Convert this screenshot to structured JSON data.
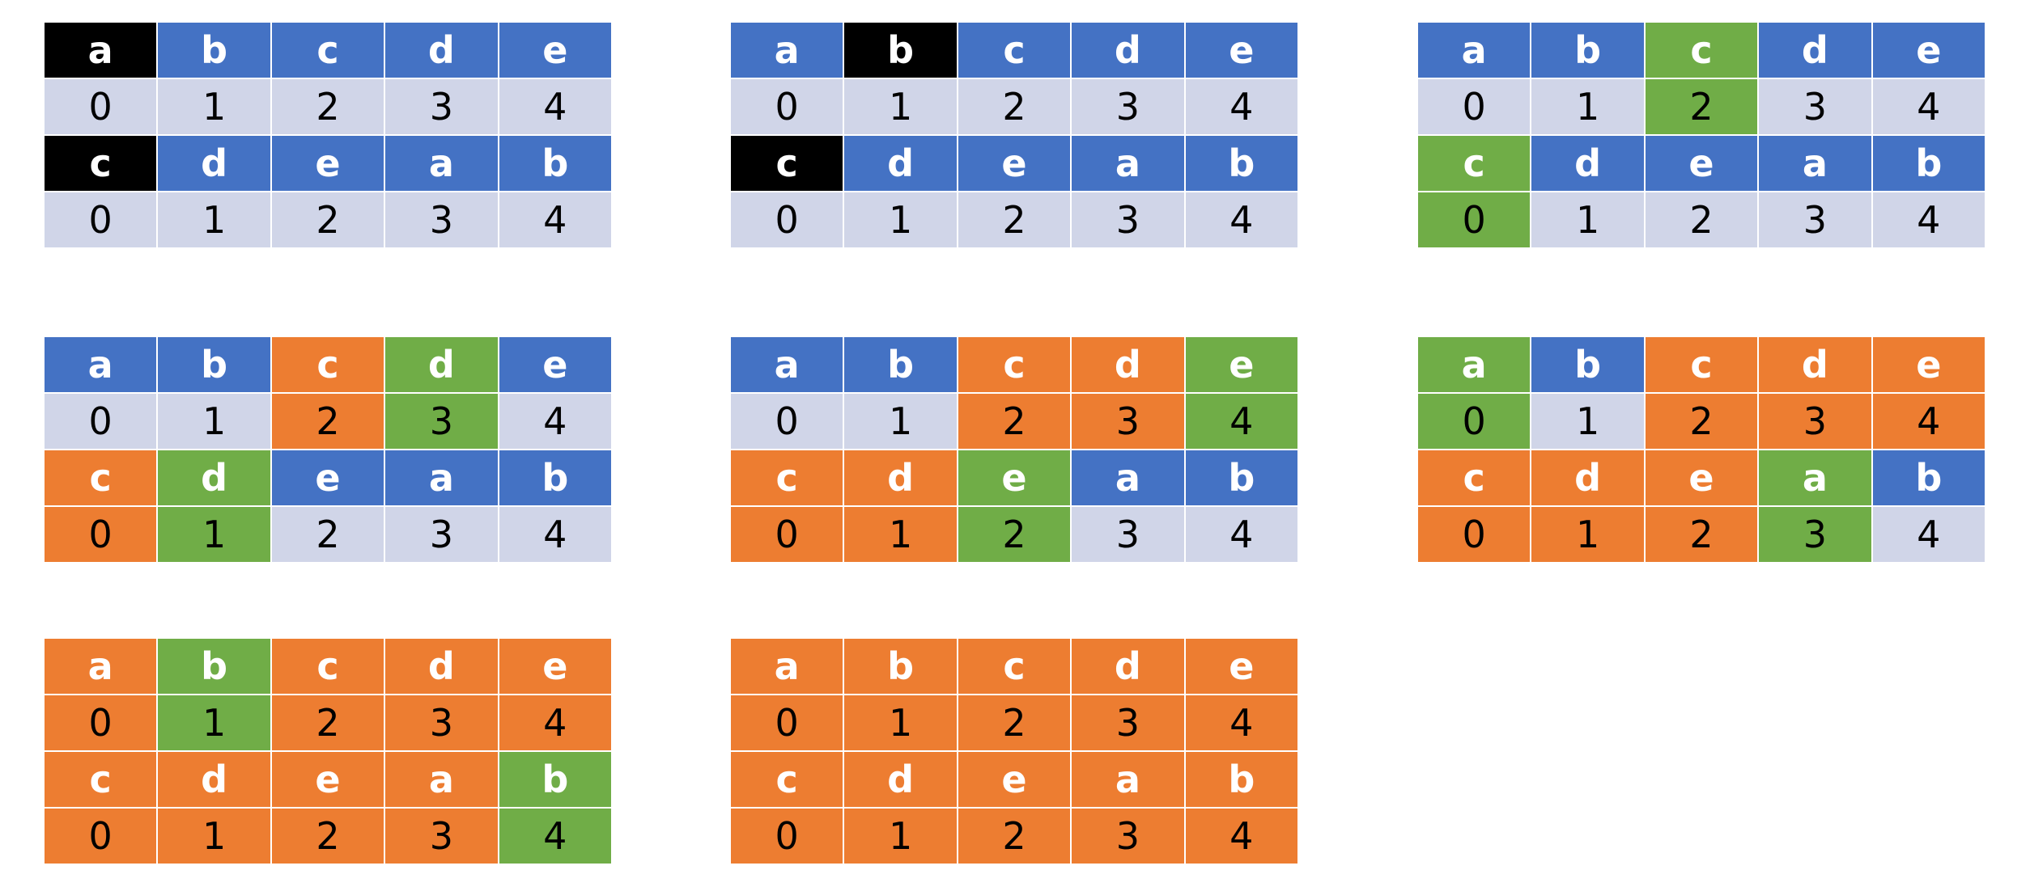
{
  "colors": {
    "blue": "#4472C4",
    "light": "#D0D5E8",
    "black": "#000000",
    "green": "#70AD47",
    "orange": "#ED7D31"
  },
  "panels": [
    {
      "rows": [
        {
          "kind": "letter",
          "cells": [
            {
              "text": "a",
              "color": "black"
            },
            {
              "text": "b",
              "color": "blue"
            },
            {
              "text": "c",
              "color": "blue"
            },
            {
              "text": "d",
              "color": "blue"
            },
            {
              "text": "e",
              "color": "blue"
            }
          ]
        },
        {
          "kind": "index",
          "cells": [
            {
              "text": "0",
              "color": "light"
            },
            {
              "text": "1",
              "color": "light"
            },
            {
              "text": "2",
              "color": "light"
            },
            {
              "text": "3",
              "color": "light"
            },
            {
              "text": "4",
              "color": "light"
            }
          ]
        },
        {
          "kind": "letter",
          "cells": [
            {
              "text": "c",
              "color": "black"
            },
            {
              "text": "d",
              "color": "blue"
            },
            {
              "text": "e",
              "color": "blue"
            },
            {
              "text": "a",
              "color": "blue"
            },
            {
              "text": "b",
              "color": "blue"
            }
          ]
        },
        {
          "kind": "index",
          "cells": [
            {
              "text": "0",
              "color": "light"
            },
            {
              "text": "1",
              "color": "light"
            },
            {
              "text": "2",
              "color": "light"
            },
            {
              "text": "3",
              "color": "light"
            },
            {
              "text": "4",
              "color": "light"
            }
          ]
        }
      ]
    },
    {
      "rows": [
        {
          "kind": "letter",
          "cells": [
            {
              "text": "a",
              "color": "blue"
            },
            {
              "text": "b",
              "color": "black"
            },
            {
              "text": "c",
              "color": "blue"
            },
            {
              "text": "d",
              "color": "blue"
            },
            {
              "text": "e",
              "color": "blue"
            }
          ]
        },
        {
          "kind": "index",
          "cells": [
            {
              "text": "0",
              "color": "light"
            },
            {
              "text": "1",
              "color": "light"
            },
            {
              "text": "2",
              "color": "light"
            },
            {
              "text": "3",
              "color": "light"
            },
            {
              "text": "4",
              "color": "light"
            }
          ]
        },
        {
          "kind": "letter",
          "cells": [
            {
              "text": "c",
              "color": "black"
            },
            {
              "text": "d",
              "color": "blue"
            },
            {
              "text": "e",
              "color": "blue"
            },
            {
              "text": "a",
              "color": "blue"
            },
            {
              "text": "b",
              "color": "blue"
            }
          ]
        },
        {
          "kind": "index",
          "cells": [
            {
              "text": "0",
              "color": "light"
            },
            {
              "text": "1",
              "color": "light"
            },
            {
              "text": "2",
              "color": "light"
            },
            {
              "text": "3",
              "color": "light"
            },
            {
              "text": "4",
              "color": "light"
            }
          ]
        }
      ]
    },
    {
      "rows": [
        {
          "kind": "letter",
          "cells": [
            {
              "text": "a",
              "color": "blue"
            },
            {
              "text": "b",
              "color": "blue"
            },
            {
              "text": "c",
              "color": "green"
            },
            {
              "text": "d",
              "color": "blue"
            },
            {
              "text": "e",
              "color": "blue"
            }
          ]
        },
        {
          "kind": "index",
          "cells": [
            {
              "text": "0",
              "color": "light"
            },
            {
              "text": "1",
              "color": "light"
            },
            {
              "text": "2",
              "color": "green"
            },
            {
              "text": "3",
              "color": "light"
            },
            {
              "text": "4",
              "color": "light"
            }
          ]
        },
        {
          "kind": "letter",
          "cells": [
            {
              "text": "c",
              "color": "green"
            },
            {
              "text": "d",
              "color": "blue"
            },
            {
              "text": "e",
              "color": "blue"
            },
            {
              "text": "a",
              "color": "blue"
            },
            {
              "text": "b",
              "color": "blue"
            }
          ]
        },
        {
          "kind": "index",
          "cells": [
            {
              "text": "0",
              "color": "green"
            },
            {
              "text": "1",
              "color": "light"
            },
            {
              "text": "2",
              "color": "light"
            },
            {
              "text": "3",
              "color": "light"
            },
            {
              "text": "4",
              "color": "light"
            }
          ]
        }
      ]
    },
    {
      "rows": [
        {
          "kind": "letter",
          "cells": [
            {
              "text": "a",
              "color": "blue"
            },
            {
              "text": "b",
              "color": "blue"
            },
            {
              "text": "c",
              "color": "orange"
            },
            {
              "text": "d",
              "color": "green"
            },
            {
              "text": "e",
              "color": "blue"
            }
          ]
        },
        {
          "kind": "index",
          "cells": [
            {
              "text": "0",
              "color": "light"
            },
            {
              "text": "1",
              "color": "light"
            },
            {
              "text": "2",
              "color": "orange"
            },
            {
              "text": "3",
              "color": "green"
            },
            {
              "text": "4",
              "color": "light"
            }
          ]
        },
        {
          "kind": "letter",
          "cells": [
            {
              "text": "c",
              "color": "orange"
            },
            {
              "text": "d",
              "color": "green"
            },
            {
              "text": "e",
              "color": "blue"
            },
            {
              "text": "a",
              "color": "blue"
            },
            {
              "text": "b",
              "color": "blue"
            }
          ]
        },
        {
          "kind": "index",
          "cells": [
            {
              "text": "0",
              "color": "orange"
            },
            {
              "text": "1",
              "color": "green"
            },
            {
              "text": "2",
              "color": "light"
            },
            {
              "text": "3",
              "color": "light"
            },
            {
              "text": "4",
              "color": "light"
            }
          ]
        }
      ]
    },
    {
      "rows": [
        {
          "kind": "letter",
          "cells": [
            {
              "text": "a",
              "color": "blue"
            },
            {
              "text": "b",
              "color": "blue"
            },
            {
              "text": "c",
              "color": "orange"
            },
            {
              "text": "d",
              "color": "orange"
            },
            {
              "text": "e",
              "color": "green"
            }
          ]
        },
        {
          "kind": "index",
          "cells": [
            {
              "text": "0",
              "color": "light"
            },
            {
              "text": "1",
              "color": "light"
            },
            {
              "text": "2",
              "color": "orange"
            },
            {
              "text": "3",
              "color": "orange"
            },
            {
              "text": "4",
              "color": "green"
            }
          ]
        },
        {
          "kind": "letter",
          "cells": [
            {
              "text": "c",
              "color": "orange"
            },
            {
              "text": "d",
              "color": "orange"
            },
            {
              "text": "e",
              "color": "green"
            },
            {
              "text": "a",
              "color": "blue"
            },
            {
              "text": "b",
              "color": "blue"
            }
          ]
        },
        {
          "kind": "index",
          "cells": [
            {
              "text": "0",
              "color": "orange"
            },
            {
              "text": "1",
              "color": "orange"
            },
            {
              "text": "2",
              "color": "green"
            },
            {
              "text": "3",
              "color": "light"
            },
            {
              "text": "4",
              "color": "light"
            }
          ]
        }
      ]
    },
    {
      "rows": [
        {
          "kind": "letter",
          "cells": [
            {
              "text": "a",
              "color": "green"
            },
            {
              "text": "b",
              "color": "blue"
            },
            {
              "text": "c",
              "color": "orange"
            },
            {
              "text": "d",
              "color": "orange"
            },
            {
              "text": "e",
              "color": "orange"
            }
          ]
        },
        {
          "kind": "index",
          "cells": [
            {
              "text": "0",
              "color": "green"
            },
            {
              "text": "1",
              "color": "light"
            },
            {
              "text": "2",
              "color": "orange"
            },
            {
              "text": "3",
              "color": "orange"
            },
            {
              "text": "4",
              "color": "orange"
            }
          ]
        },
        {
          "kind": "letter",
          "cells": [
            {
              "text": "c",
              "color": "orange"
            },
            {
              "text": "d",
              "color": "orange"
            },
            {
              "text": "e",
              "color": "orange"
            },
            {
              "text": "a",
              "color": "green"
            },
            {
              "text": "b",
              "color": "blue"
            }
          ]
        },
        {
          "kind": "index",
          "cells": [
            {
              "text": "0",
              "color": "orange"
            },
            {
              "text": "1",
              "color": "orange"
            },
            {
              "text": "2",
              "color": "orange"
            },
            {
              "text": "3",
              "color": "green"
            },
            {
              "text": "4",
              "color": "light"
            }
          ]
        }
      ]
    },
    {
      "rows": [
        {
          "kind": "letter",
          "cells": [
            {
              "text": "a",
              "color": "orange"
            },
            {
              "text": "b",
              "color": "green"
            },
            {
              "text": "c",
              "color": "orange"
            },
            {
              "text": "d",
              "color": "orange"
            },
            {
              "text": "e",
              "color": "orange"
            }
          ]
        },
        {
          "kind": "index",
          "cells": [
            {
              "text": "0",
              "color": "orange"
            },
            {
              "text": "1",
              "color": "green"
            },
            {
              "text": "2",
              "color": "orange"
            },
            {
              "text": "3",
              "color": "orange"
            },
            {
              "text": "4",
              "color": "orange"
            }
          ]
        },
        {
          "kind": "letter",
          "cells": [
            {
              "text": "c",
              "color": "orange"
            },
            {
              "text": "d",
              "color": "orange"
            },
            {
              "text": "e",
              "color": "orange"
            },
            {
              "text": "a",
              "color": "orange"
            },
            {
              "text": "b",
              "color": "green"
            }
          ]
        },
        {
          "kind": "index",
          "cells": [
            {
              "text": "0",
              "color": "orange"
            },
            {
              "text": "1",
              "color": "orange"
            },
            {
              "text": "2",
              "color": "orange"
            },
            {
              "text": "3",
              "color": "orange"
            },
            {
              "text": "4",
              "color": "green"
            }
          ]
        }
      ]
    },
    {
      "rows": [
        {
          "kind": "letter",
          "cells": [
            {
              "text": "a",
              "color": "orange"
            },
            {
              "text": "b",
              "color": "orange"
            },
            {
              "text": "c",
              "color": "orange"
            },
            {
              "text": "d",
              "color": "orange"
            },
            {
              "text": "e",
              "color": "orange"
            }
          ]
        },
        {
          "kind": "index",
          "cells": [
            {
              "text": "0",
              "color": "orange"
            },
            {
              "text": "1",
              "color": "orange"
            },
            {
              "text": "2",
              "color": "orange"
            },
            {
              "text": "3",
              "color": "orange"
            },
            {
              "text": "4",
              "color": "orange"
            }
          ]
        },
        {
          "kind": "letter",
          "cells": [
            {
              "text": "c",
              "color": "orange"
            },
            {
              "text": "d",
              "color": "orange"
            },
            {
              "text": "e",
              "color": "orange"
            },
            {
              "text": "a",
              "color": "orange"
            },
            {
              "text": "b",
              "color": "orange"
            }
          ]
        },
        {
          "kind": "index",
          "cells": [
            {
              "text": "0",
              "color": "orange"
            },
            {
              "text": "1",
              "color": "orange"
            },
            {
              "text": "2",
              "color": "orange"
            },
            {
              "text": "3",
              "color": "orange"
            },
            {
              "text": "4",
              "color": "orange"
            }
          ]
        }
      ]
    }
  ]
}
